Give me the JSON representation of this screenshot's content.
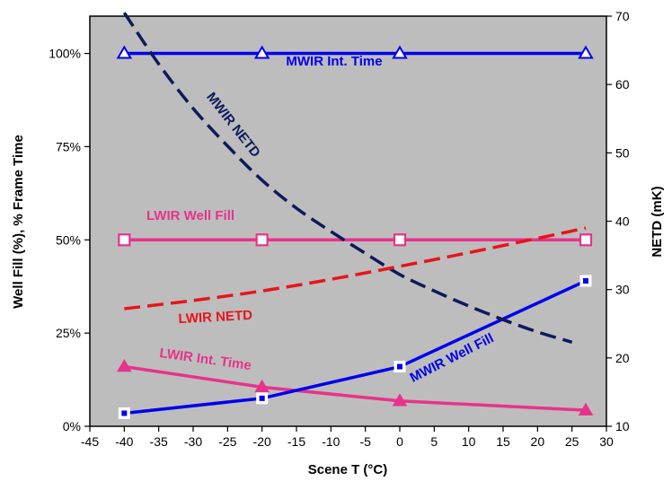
{
  "chart_data": {
    "type": "line",
    "xlabel": "Scene T (°C)",
    "ylabel_left": "Well Fill (%), % Frame Time",
    "ylabel_right": "NETD (mK)",
    "xlim": [
      -45,
      30
    ],
    "ylim_left": [
      0,
      110
    ],
    "ylim_right": [
      10,
      70
    ],
    "x_ticks": [
      -45,
      -40,
      -35,
      -30,
      -25,
      -20,
      -15,
      -10,
      -5,
      0,
      5,
      10,
      15,
      20,
      25,
      30
    ],
    "y_left_ticks": [
      {
        "value": 0,
        "label": "0%"
      },
      {
        "value": 25,
        "label": "25%"
      },
      {
        "value": 50,
        "label": "50%"
      },
      {
        "value": 75,
        "label": "75%"
      },
      {
        "value": 100,
        "label": "100%"
      }
    ],
    "y_right_ticks": [
      10,
      20,
      30,
      40,
      50,
      60,
      70
    ],
    "grid": false,
    "background": "#bdbdbd",
    "series": [
      {
        "name": "MWIR Int. Time",
        "axis": "left",
        "color": "#0000ee",
        "style": "solid",
        "marker": "triangle-open",
        "x": [
          -40,
          -20,
          0,
          27
        ],
        "y": [
          100,
          100,
          100,
          100
        ]
      },
      {
        "name": "LWIR Well Fill",
        "axis": "left",
        "color": "#e8338a",
        "style": "solid",
        "marker": "square-open",
        "x": [
          -40,
          -20,
          0,
          27
        ],
        "y": [
          50,
          50,
          50,
          50
        ]
      },
      {
        "name": "LWIR Int. Time",
        "axis": "left",
        "color": "#e8338a",
        "style": "solid",
        "marker": "triangle-filled",
        "x": [
          -40,
          -20,
          0,
          27
        ],
        "y": [
          16,
          10.5,
          6.8,
          4.3
        ]
      },
      {
        "name": "MWIR Well Fill",
        "axis": "left",
        "color": "#0000ee",
        "style": "solid",
        "marker": "square-open-dot",
        "x": [
          -40,
          -20,
          0,
          27
        ],
        "y": [
          3.5,
          7.5,
          16,
          39
        ]
      },
      {
        "name": "MWIR NETD",
        "axis": "right",
        "color": "#0d1a5c",
        "style": "dashed",
        "marker": "none",
        "x": [
          -40,
          -35,
          -30,
          -25,
          -20,
          -15,
          -10,
          -5,
          0,
          5,
          10,
          15,
          20,
          25
        ],
        "y": [
          70.5,
          63,
          56.5,
          51,
          46,
          41.9,
          38.5,
          35.3,
          32.2,
          29.8,
          27.6,
          25.6,
          23.8,
          22.3
        ]
      },
      {
        "name": "LWIR NETD",
        "axis": "right",
        "color": "#e8141b",
        "style": "dashed",
        "marker": "none",
        "x": [
          -40,
          -30,
          -20,
          -10,
          0,
          10,
          20,
          27
        ],
        "y": [
          27.2,
          28.4,
          29.8,
          31.5,
          33.4,
          35.4,
          37.5,
          39
        ]
      }
    ]
  }
}
